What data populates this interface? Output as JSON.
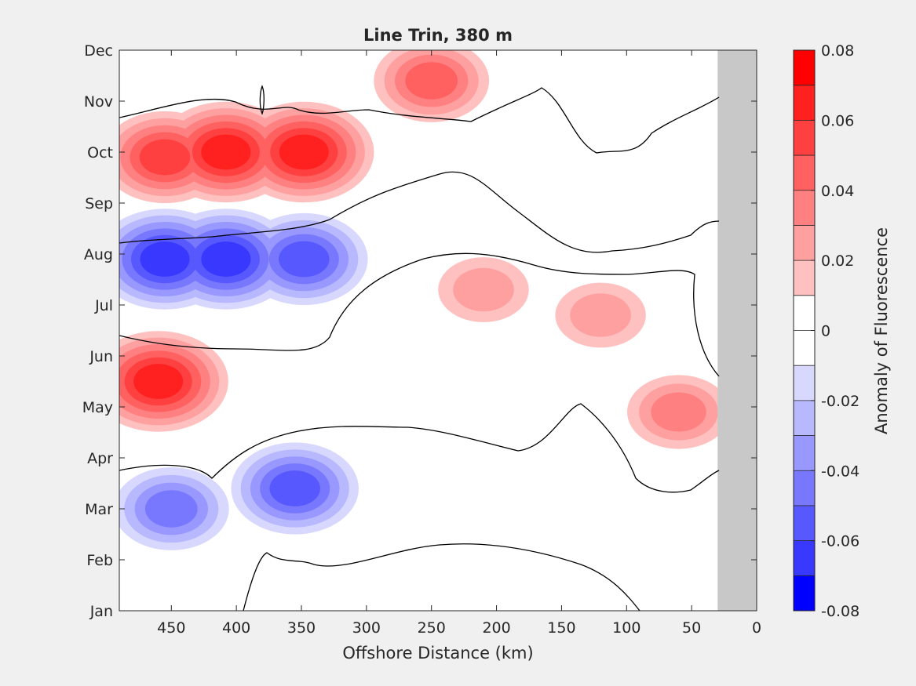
{
  "chart_data": {
    "type": "heatmap",
    "subtype": "filled-contour",
    "title": "Line Trin, 380 m",
    "xlabel": "Offshore Distance (km)",
    "ylabel": "",
    "xlim": [
      490,
      0
    ],
    "x_ticks": [
      450,
      400,
      350,
      300,
      250,
      200,
      150,
      100,
      50,
      0
    ],
    "ylim": [
      "Jan",
      "Dec"
    ],
    "y_ticks": [
      "Jan",
      "Feb",
      "Mar",
      "Apr",
      "May",
      "Jun",
      "Jul",
      "Aug",
      "Sep",
      "Oct",
      "Nov",
      "Dec"
    ],
    "colorbar": {
      "label": "Anomaly of Fluorescence",
      "range": [
        -0.08,
        0.08
      ],
      "ticks": [
        "0.08",
        "0.06",
        "0.04",
        "0.02",
        "0",
        "-0.02",
        "-0.04",
        "-0.06",
        "-0.08"
      ],
      "levels": 16,
      "colors_top_to_bottom": [
        "#ff0000",
        "#ff2020",
        "#ff4040",
        "#ff6060",
        "#ff8080",
        "#ffa0a0",
        "#ffc0c0",
        "#ffffff",
        "#ffffff",
        "#d8d8ff",
        "#b8b8ff",
        "#9898ff",
        "#7878ff",
        "#5858ff",
        "#3838ff",
        "#0000ff"
      ]
    },
    "no_data_region_km": [
      0,
      30
    ],
    "no_data_color": "#c8c8c8",
    "zero_contour_color": "#000000",
    "anomalies": [
      {
        "x_km": 460,
        "month": 5.5,
        "value": 0.07
      },
      {
        "x_km": 455,
        "month": 7.9,
        "value": -0.07
      },
      {
        "x_km": 408,
        "month": 7.9,
        "value": -0.07
      },
      {
        "x_km": 348,
        "month": 7.9,
        "value": -0.06
      },
      {
        "x_km": 455,
        "month": 9.9,
        "value": 0.06
      },
      {
        "x_km": 408,
        "month": 10.0,
        "value": 0.065
      },
      {
        "x_km": 348,
        "month": 10.0,
        "value": 0.065
      },
      {
        "x_km": 250,
        "month": 11.4,
        "value": 0.045
      },
      {
        "x_km": 355,
        "month": 3.4,
        "value": -0.055
      },
      {
        "x_km": 450,
        "month": 3.0,
        "value": -0.04
      },
      {
        "x_km": 210,
        "month": 7.3,
        "value": 0.02
      },
      {
        "x_km": 120,
        "month": 6.8,
        "value": 0.025
      },
      {
        "x_km": 60,
        "month": 4.9,
        "value": 0.03
      }
    ]
  }
}
